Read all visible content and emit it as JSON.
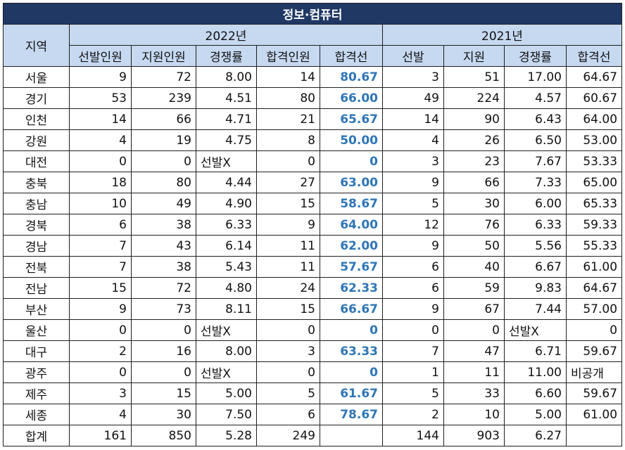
{
  "title": "정보·컴퓨터",
  "header": {
    "region": "지역",
    "year_2022": "2022년",
    "year_2021": "2021년",
    "cols_2022": [
      "선발인원",
      "지원인원",
      "경쟁률",
      "합격인원",
      "합격선"
    ],
    "cols_2021": [
      "선발",
      "지원",
      "경쟁률",
      "합격선"
    ]
  },
  "rows": [
    {
      "region": "서울",
      "y2022": [
        "9",
        "72",
        "8.00",
        "14",
        "80.67"
      ],
      "y2021": [
        "3",
        "51",
        "17.00",
        "64.67"
      ]
    },
    {
      "region": "경기",
      "y2022": [
        "53",
        "239",
        "4.51",
        "80",
        "66.00"
      ],
      "y2021": [
        "49",
        "224",
        "4.57",
        "60.67"
      ]
    },
    {
      "region": "인천",
      "y2022": [
        "14",
        "66",
        "4.71",
        "21",
        "65.67"
      ],
      "y2021": [
        "14",
        "90",
        "6.43",
        "64.00"
      ]
    },
    {
      "region": "강원",
      "y2022": [
        "4",
        "19",
        "4.75",
        "8",
        "50.00"
      ],
      "y2021": [
        "4",
        "26",
        "6.50",
        "53.00"
      ]
    },
    {
      "region": "대전",
      "y2022": [
        "0",
        "0",
        "선발X",
        "0",
        "0"
      ],
      "y2021": [
        "3",
        "23",
        "7.67",
        "53.33"
      ]
    },
    {
      "region": "충북",
      "y2022": [
        "18",
        "80",
        "4.44",
        "27",
        "63.00"
      ],
      "y2021": [
        "9",
        "66",
        "7.33",
        "65.00"
      ]
    },
    {
      "region": "충남",
      "y2022": [
        "10",
        "49",
        "4.90",
        "15",
        "58.67"
      ],
      "y2021": [
        "5",
        "30",
        "6.00",
        "65.33"
      ]
    },
    {
      "region": "경북",
      "y2022": [
        "6",
        "38",
        "6.33",
        "9",
        "64.00"
      ],
      "y2021": [
        "12",
        "76",
        "6.33",
        "59.33"
      ]
    },
    {
      "region": "경남",
      "y2022": [
        "7",
        "43",
        "6.14",
        "11",
        "62.00"
      ],
      "y2021": [
        "9",
        "50",
        "5.56",
        "55.33"
      ]
    },
    {
      "region": "전북",
      "y2022": [
        "7",
        "38",
        "5.43",
        "11",
        "57.67"
      ],
      "y2021": [
        "6",
        "40",
        "6.67",
        "61.00"
      ]
    },
    {
      "region": "전남",
      "y2022": [
        "15",
        "72",
        "4.80",
        "24",
        "62.33"
      ],
      "y2021": [
        "6",
        "59",
        "9.83",
        "64.67"
      ]
    },
    {
      "region": "부산",
      "y2022": [
        "9",
        "73",
        "8.11",
        "15",
        "66.67"
      ],
      "y2021": [
        "9",
        "67",
        "7.44",
        "57.00"
      ]
    },
    {
      "region": "울산",
      "y2022": [
        "0",
        "0",
        "선발X",
        "0",
        "0"
      ],
      "y2021": [
        "0",
        "0",
        "선발X",
        "0"
      ]
    },
    {
      "region": "대구",
      "y2022": [
        "2",
        "16",
        "8.00",
        "3",
        "63.33"
      ],
      "y2021": [
        "7",
        "47",
        "6.71",
        "59.67"
      ]
    },
    {
      "region": "광주",
      "y2022": [
        "0",
        "0",
        "선발X",
        "0",
        "0"
      ],
      "y2021": [
        "1",
        "11",
        "11.00",
        "비공개"
      ]
    },
    {
      "region": "제주",
      "y2022": [
        "3",
        "15",
        "5.00",
        "5",
        "61.67"
      ],
      "y2021": [
        "5",
        "33",
        "6.60",
        "59.67"
      ]
    },
    {
      "region": "세종",
      "y2022": [
        "4",
        "30",
        "7.50",
        "6",
        "78.67"
      ],
      "y2021": [
        "2",
        "10",
        "5.00",
        "61.00"
      ]
    },
    {
      "region": "합계",
      "y2022": [
        "161",
        "850",
        "5.28",
        "249",
        ""
      ],
      "y2021": [
        "144",
        "903",
        "6.27",
        ""
      ]
    }
  ],
  "colors": {
    "title_bg": "#1f3864",
    "header_bg": "#c6d9f1",
    "cutoff_text": "#2e75b6"
  }
}
